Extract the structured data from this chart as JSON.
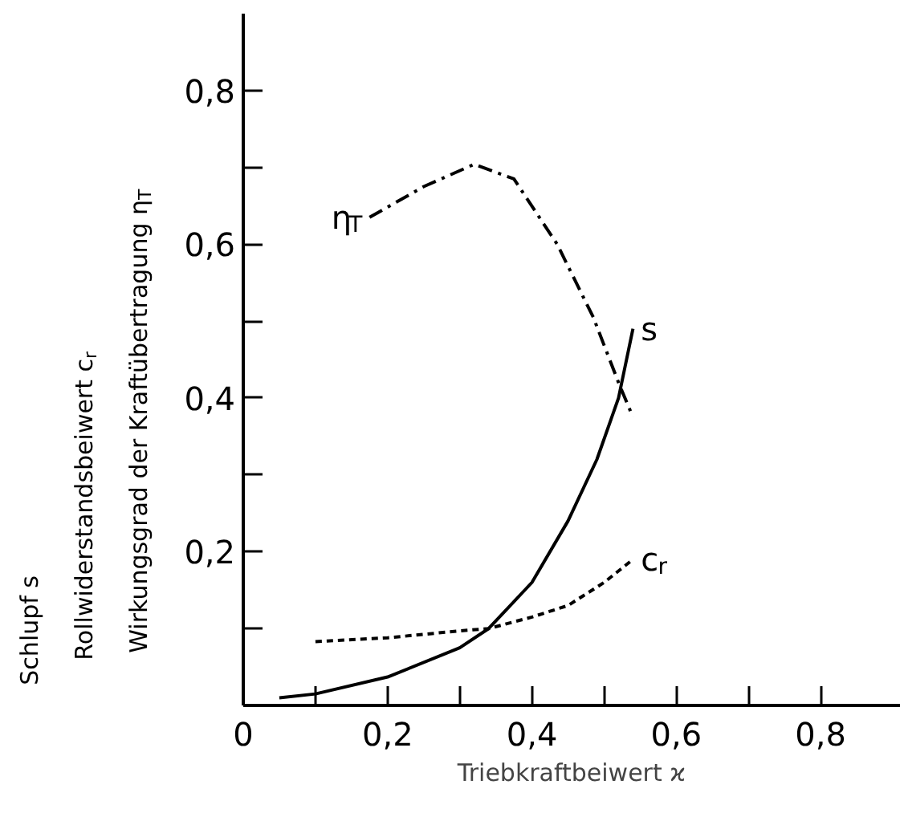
{
  "chart_data": {
    "type": "line",
    "xlabel": "Triebkraftbeiwert ϰ",
    "ylabel": "Schlupf s\nRollwiderstandsbeiwert c$_{r}$\nWirkungsgrad der Kraftübertragung η$_{T}$",
    "xlim": [
      0,
      0.91
    ],
    "ylim": [
      0,
      0.9
    ],
    "xticks": [
      {
        "value": 0,
        "label": "0"
      },
      {
        "value": 0.1,
        "label": null
      },
      {
        "value": 0.2,
        "label": "0,2"
      },
      {
        "value": 0.3,
        "label": null
      },
      {
        "value": 0.4,
        "label": "0,4"
      },
      {
        "value": 0.5,
        "label": null
      },
      {
        "value": 0.6,
        "label": "0,6"
      },
      {
        "value": 0.7,
        "label": null
      },
      {
        "value": 0.8,
        "label": "0,8"
      }
    ],
    "yticks": [
      {
        "value": 0.1,
        "label": null
      },
      {
        "value": 0.2,
        "label": "0,2"
      },
      {
        "value": 0.3,
        "label": null
      },
      {
        "value": 0.4,
        "label": "0,4"
      },
      {
        "value": 0.5,
        "label": null
      },
      {
        "value": 0.6,
        "label": "0,6"
      },
      {
        "value": 0.7,
        "label": null
      },
      {
        "value": 0.8,
        "label": "0,8"
      }
    ],
    "grid": false,
    "marker": "none",
    "series": [
      {
        "name": "s",
        "color": "#000000",
        "line_style": "solid",
        "x": [
          0.05,
          0.1,
          0.2,
          0.3,
          0.34,
          0.4,
          0.45,
          0.49,
          0.52,
          0.54
        ],
        "values": [
          0.01,
          0.015,
          0.037,
          0.075,
          0.1,
          0.16,
          0.24,
          0.32,
          0.4,
          0.49
        ]
      },
      {
        "name": "c$_{r}$",
        "color": "#000000",
        "line_style": "dashed",
        "x": [
          0.1,
          0.2,
          0.3,
          0.34,
          0.4,
          0.45,
          0.5,
          0.54
        ],
        "values": [
          0.083,
          0.088,
          0.097,
          0.1,
          0.115,
          0.13,
          0.16,
          0.19
        ]
      },
      {
        "name": "η$_{T}$",
        "color": "#000000",
        "line_style": "dashdot",
        "x": [
          0.175,
          0.25,
          0.32,
          0.375,
          0.435,
          0.485,
          0.52,
          0.54
        ],
        "values": [
          0.635,
          0.675,
          0.704,
          0.685,
          0.6,
          0.505,
          0.42,
          0.375
        ]
      }
    ]
  }
}
